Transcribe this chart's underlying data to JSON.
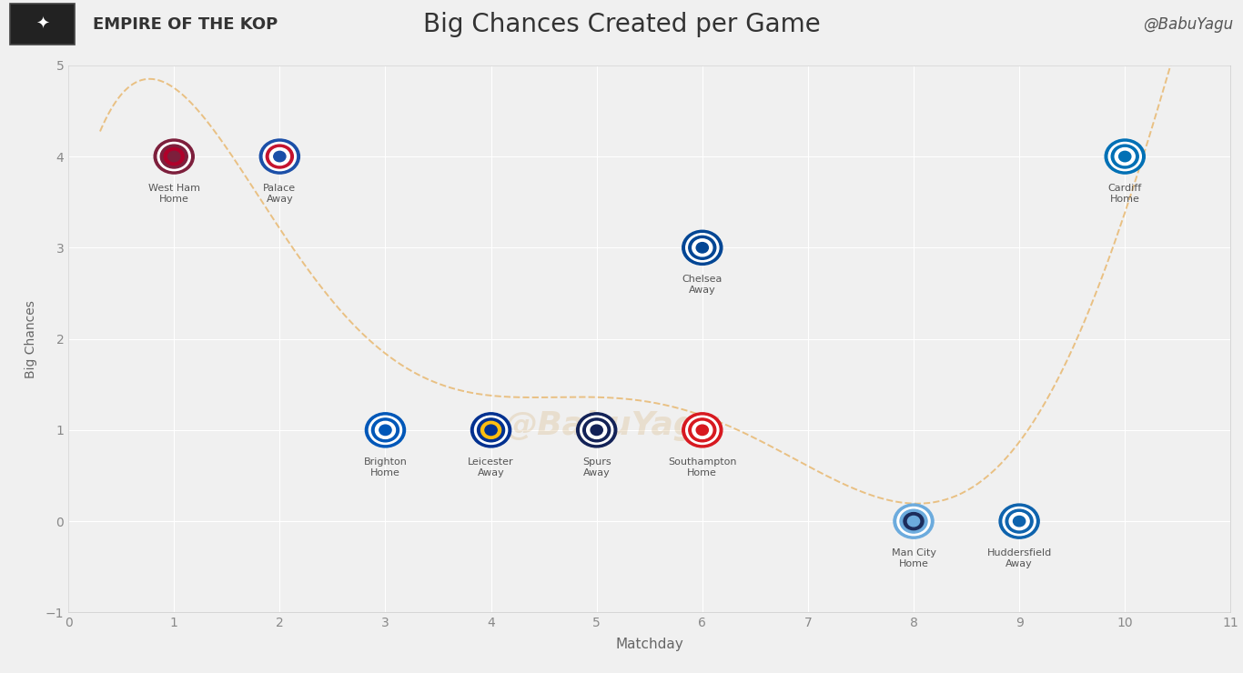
{
  "title": "Big Chances Created per Game",
  "xlabel": "Matchday",
  "ylabel": "Big Chances",
  "header_bg": "#c0c0c0",
  "plot_bg": "#f0f0f0",
  "branding_left": "EMPIRE OF THE KOP",
  "branding_right": "@BabuYagu",
  "xlim": [
    0,
    11
  ],
  "ylim": [
    -1,
    5
  ],
  "xticks": [
    0,
    1,
    2,
    3,
    4,
    5,
    6,
    7,
    8,
    9,
    10,
    11
  ],
  "yticks": [
    -1,
    0,
    1,
    2,
    3,
    4,
    5
  ],
  "curve_color": "#e8b870",
  "watermark_text": "@BabuYagu",
  "watermark_color": "#d4a96a",
  "watermark_alpha": 0.25,
  "points": [
    {
      "matchday": 1,
      "big_chances": 4,
      "team": "West Ham",
      "venue": "Home",
      "colors": [
        "#7d1f3c",
        "#ffffff",
        "#7d1f3c",
        "#ffffff"
      ]
    },
    {
      "matchday": 2,
      "big_chances": 4,
      "team": "Palace",
      "venue": "Away",
      "colors": [
        "#1b4fa8",
        "#c4122e",
        "#1b4fa8",
        "#c4122e"
      ]
    },
    {
      "matchday": 3,
      "big_chances": 1,
      "team": "Brighton",
      "venue": "Home",
      "colors": [
        "#0057b8",
        "#ffffff",
        "#0057b8",
        "#ffffff"
      ]
    },
    {
      "matchday": 4,
      "big_chances": 1,
      "team": "Leicester",
      "venue": "Away",
      "colors": [
        "#003090",
        "#fdbe11",
        "#003090",
        "#fdbe11"
      ]
    },
    {
      "matchday": 5,
      "big_chances": 1,
      "team": "Spurs",
      "venue": "Away",
      "colors": [
        "#132257",
        "#ffffff",
        "#132257",
        "#ffffff"
      ]
    },
    {
      "matchday": 6,
      "big_chances": 1,
      "team": "Southampton",
      "venue": "Home",
      "colors": [
        "#d71920",
        "#ffffff",
        "#d71920",
        "#ffffff"
      ]
    },
    {
      "matchday": 6,
      "big_chances": 3,
      "team": "Chelsea",
      "venue": "Away",
      "colors": [
        "#034694",
        "#ffffff",
        "#034694",
        "#ffffff"
      ]
    },
    {
      "matchday": 8,
      "big_chances": 0,
      "team": "Man City",
      "venue": "Home",
      "colors": [
        "#6cabdd",
        "#1c2c5b",
        "#6cabdd",
        "#1c2c5b"
      ]
    },
    {
      "matchday": 9,
      "big_chances": 0,
      "team": "Huddersfield",
      "venue": "Away",
      "colors": [
        "#0e63ad",
        "#ffffff",
        "#0e63ad",
        "#ffffff"
      ]
    },
    {
      "matchday": 10,
      "big_chances": 4,
      "team": "Cardiff",
      "venue": "Home",
      "colors": [
        "#0070b5",
        "#ffffff",
        "#0070b5",
        "#ffffff"
      ]
    }
  ],
  "grid_color": "#ffffff",
  "tick_color": "#888888",
  "label_color": "#666666",
  "spine_color": "#cccccc"
}
